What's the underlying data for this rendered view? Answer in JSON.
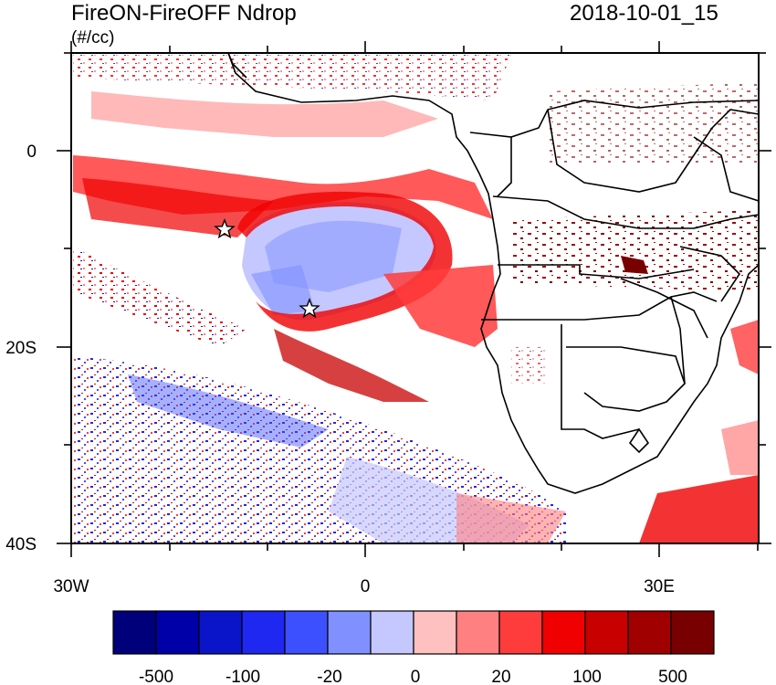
{
  "header": {
    "title": "FireON-FireOFF Ndrop",
    "datetime": "2018-10-01_15",
    "units": "(#/cc)"
  },
  "map": {
    "lon_ticks": [
      {
        "label": "30W"
      },
      {
        "label": "0"
      },
      {
        "label": "30E"
      }
    ],
    "lat_ticks": [
      {
        "label": "0"
      },
      {
        "label": "20S"
      },
      {
        "label": "40S"
      }
    ],
    "markers": [
      {
        "name": "star-marker-1"
      },
      {
        "name": "star-marker-2"
      }
    ]
  },
  "colorbar": {
    "colors": [
      "#00007a",
      "#0000a8",
      "#0a14c8",
      "#1e28f0",
      "#3c50ff",
      "#8090ff",
      "#c4c8ff",
      "#ffc0c0",
      "#ff8080",
      "#ff3c3c",
      "#f00000",
      "#c80000",
      "#a00000",
      "#780000"
    ],
    "labels": [
      "-500",
      "-100",
      "-20",
      "0",
      "20",
      "100",
      "500"
    ]
  }
}
